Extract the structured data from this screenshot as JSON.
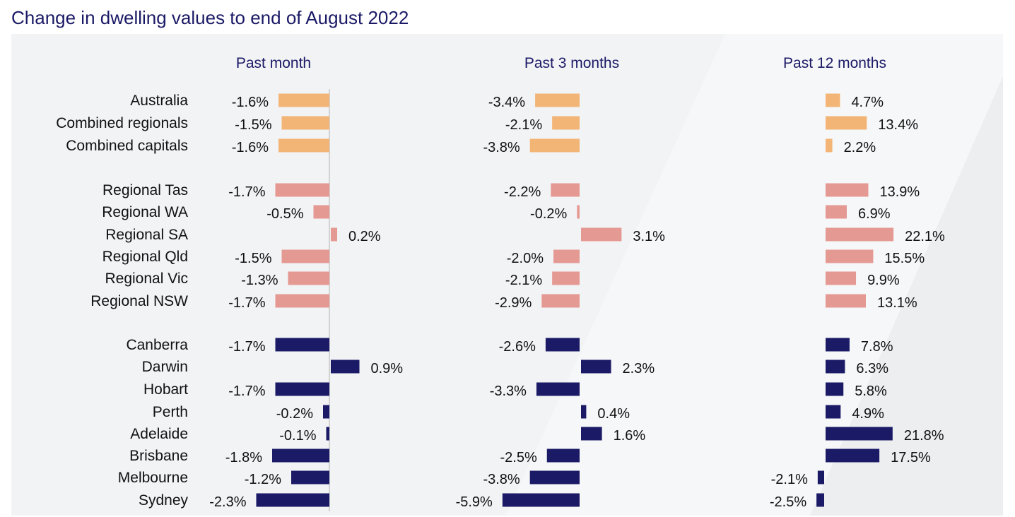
{
  "title": "Change in dwelling values to end of August 2022",
  "colors": {
    "summary": "#f2b575",
    "regional": "#e59993",
    "capitals": "#1b1a66",
    "text": "#111111",
    "header": "#1b1a66",
    "axis": "#c8c8c8"
  },
  "chart_data": {
    "type": "bar",
    "orientation": "horizontal",
    "categories": [
      "Australia",
      "Combined regionals",
      "Combined capitals",
      "Regional Tas",
      "Regional WA",
      "Regional SA",
      "Regional Qld",
      "Regional Vic",
      "Regional NSW",
      "Canberra",
      "Darwin",
      "Hobart",
      "Perth",
      "Adelaide",
      "Brisbane",
      "Melbourne",
      "Sydney"
    ],
    "groups": [
      "summary",
      "summary",
      "summary",
      "regional",
      "regional",
      "regional",
      "regional",
      "regional",
      "regional",
      "capitals",
      "capitals",
      "capitals",
      "capitals",
      "capitals",
      "capitals",
      "capitals",
      "capitals"
    ],
    "series": [
      {
        "name": "Past month",
        "values": [
          -1.6,
          -1.5,
          -1.6,
          -1.7,
          -0.5,
          0.2,
          -1.5,
          -1.3,
          -1.7,
          -1.7,
          0.9,
          -1.7,
          -0.2,
          -0.1,
          -1.8,
          -1.2,
          -2.3
        ]
      },
      {
        "name": "Past 3 months",
        "values": [
          -3.4,
          -2.1,
          -3.8,
          -2.2,
          -0.2,
          3.1,
          -2.0,
          -2.1,
          -2.9,
          -2.6,
          2.3,
          -3.3,
          0.4,
          1.6,
          -2.5,
          -3.8,
          -5.9
        ]
      },
      {
        "name": "Past 12 months",
        "values": [
          4.7,
          13.4,
          2.2,
          13.9,
          6.9,
          22.1,
          15.5,
          9.9,
          13.1,
          7.8,
          6.3,
          5.8,
          4.9,
          21.8,
          17.5,
          -2.1,
          -2.5
        ]
      }
    ],
    "value_format": "%",
    "data_labels": true
  }
}
